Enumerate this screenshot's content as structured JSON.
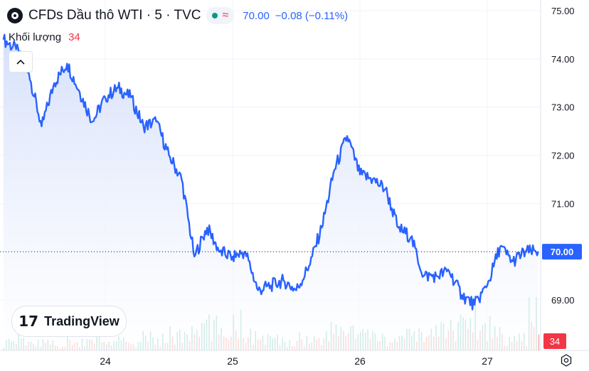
{
  "header": {
    "title": "CFDs Dầu thô WTI · 5 · TVC",
    "last_price": "70.00",
    "change": "−0.08 (−0.11%)",
    "status_icon": "market-open-dot",
    "wave_icon": "delayed-wave-icon"
  },
  "volume": {
    "label": "Khối lượng",
    "value": "34"
  },
  "logo": {
    "mark": "17",
    "text": "TradingView"
  },
  "colors": {
    "line": "#2962ff",
    "area_top": "#d6e0fb",
    "area_bottom": "#ffffff",
    "volume_up": "#8fd1c4",
    "volume_down": "#f7a9a9",
    "grid": "#f0f3fa",
    "price_tag": "#2962ff",
    "volume_tag": "#f23645"
  },
  "chart_data": {
    "type": "area",
    "title": "CFDs Dầu thô WTI · 5 · TVC",
    "xlabel": "",
    "ylabel": "",
    "x_ticks": [
      "24",
      "25",
      "26",
      "27"
    ],
    "y_ticks": [
      "75.00",
      "74.00",
      "73.00",
      "72.00",
      "71.00",
      "70.00",
      "69.00"
    ],
    "ylim": [
      68.2,
      75.0
    ],
    "grid": true,
    "last_price_label": "70.00",
    "last_volume_label": "34",
    "series": [
      {
        "name": "",
        "x": [
          23.2,
          23.3,
          23.4,
          23.5,
          23.6,
          23.7,
          23.8,
          23.9,
          24.0,
          24.1,
          24.2,
          24.3,
          24.4,
          24.5,
          24.6,
          24.7,
          24.8,
          24.9,
          25.0,
          25.1,
          25.2,
          25.3,
          25.4,
          25.5,
          25.6,
          25.7,
          25.8,
          25.9,
          26.0,
          26.1,
          26.2,
          26.3,
          26.4,
          26.5,
          26.6,
          26.7,
          26.8,
          26.9,
          27.0,
          27.1,
          27.2,
          27.3,
          27.4
        ],
        "values": [
          74.4,
          74.2,
          73.7,
          72.6,
          73.5,
          73.9,
          73.3,
          72.7,
          73.2,
          73.4,
          73.2,
          72.6,
          72.7,
          72.0,
          71.5,
          69.9,
          70.5,
          70.0,
          69.9,
          70.0,
          69.2,
          69.3,
          69.4,
          69.2,
          69.7,
          70.5,
          71.7,
          72.4,
          71.6,
          71.5,
          71.3,
          70.5,
          70.3,
          69.5,
          69.5,
          69.6,
          69.1,
          68.9,
          69.3,
          70.1,
          69.8,
          70.0,
          70.0
        ]
      }
    ],
    "volume": [
      6,
      9,
      5,
      7,
      4,
      8,
      6,
      10,
      5,
      7,
      6,
      9,
      8,
      12,
      10,
      14,
      18,
      16,
      22,
      12,
      9,
      8,
      6,
      9,
      8,
      10,
      14,
      16,
      12,
      10,
      9,
      8,
      10,
      12,
      14,
      16,
      20,
      24,
      18,
      14,
      10,
      8,
      34
    ]
  }
}
